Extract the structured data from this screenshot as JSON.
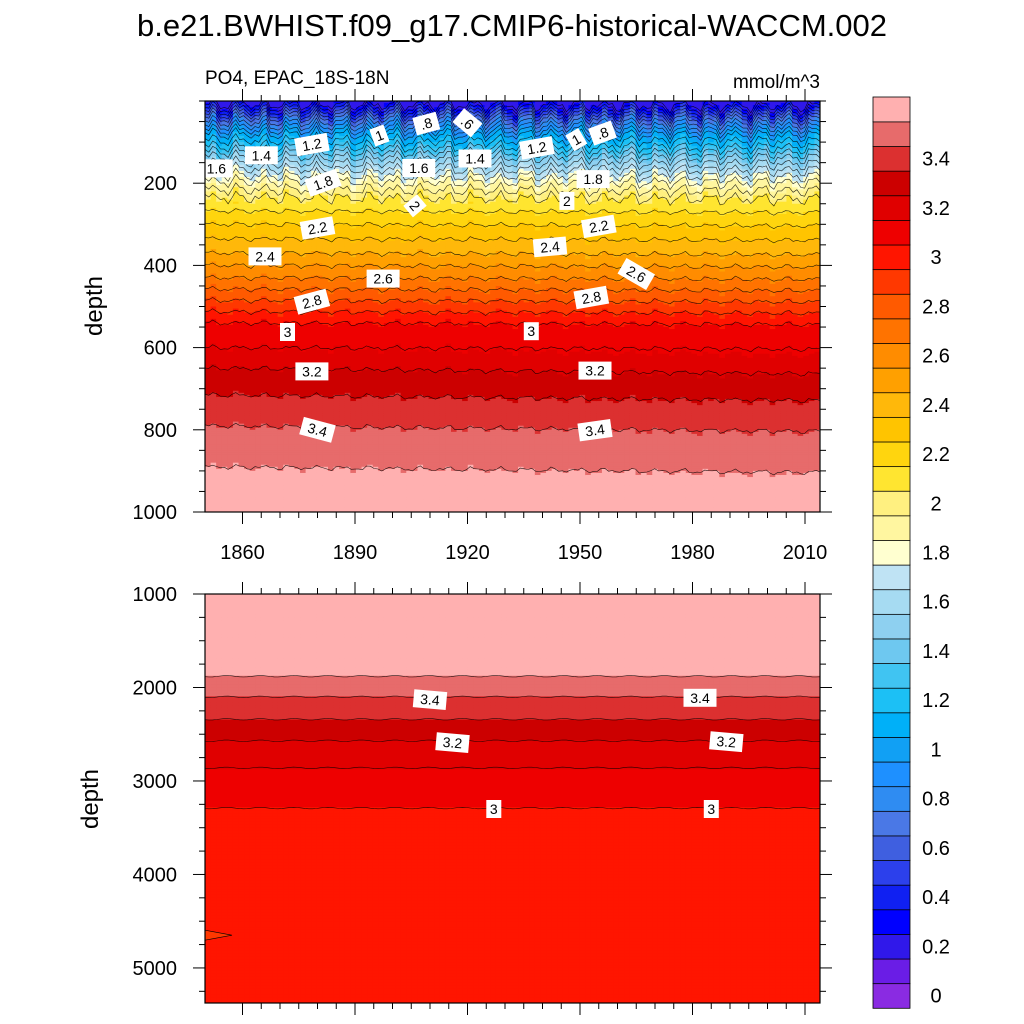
{
  "chart_data": {
    "type": "heatmap",
    "title": "b.e21.BWHIST.f09_g17.CMIP6-historical-WACCM.002",
    "left_string": "PO4, EPAC_18S-18N",
    "right_string": "mmol/m^3",
    "ylabel": "depth",
    "panels": [
      {
        "name": "upper",
        "ylim": [
          1000,
          0
        ],
        "xlim": [
          1850,
          2014
        ],
        "yticks": [
          "200",
          "400",
          "600",
          "800",
          "1000"
        ],
        "xticks": [
          "1860",
          "1890",
          "1920",
          "1950",
          "1980",
          "2010"
        ],
        "contour_labels": [
          {
            "text": "1",
            "x": 1896.5,
            "y": 84
          },
          {
            "text": ".8",
            "x": 1909,
            "y": 55
          },
          {
            "text": ".6",
            "x": 1920,
            "y": 53
          },
          {
            "text": "1.2",
            "x": 1878.5,
            "y": 106
          },
          {
            "text": "1.4",
            "x": 1865,
            "y": 132
          },
          {
            "text": "1.6",
            "x": 1853,
            "y": 164
          },
          {
            "text": "1.8",
            "x": 1881.5,
            "y": 199
          },
          {
            "text": "1.6",
            "x": 1907,
            "y": 163
          },
          {
            "text": "1.4",
            "x": 1922,
            "y": 140
          },
          {
            "text": "2",
            "x": 1906,
            "y": 255
          },
          {
            "text": "2.2",
            "x": 1880,
            "y": 309
          },
          {
            "text": "2.4",
            "x": 1866,
            "y": 378
          },
          {
            "text": "2.6",
            "x": 1897.5,
            "y": 432
          },
          {
            "text": "2.8",
            "x": 1878.5,
            "y": 488
          },
          {
            "text": "3",
            "x": 1872,
            "y": 562
          },
          {
            "text": "3.2",
            "x": 1878.5,
            "y": 658
          },
          {
            "text": "3.4",
            "x": 1880,
            "y": 800
          },
          {
            "text": "1.2",
            "x": 1938.5,
            "y": 114
          },
          {
            "text": "1",
            "x": 1949,
            "y": 94
          },
          {
            "text": ".8",
            "x": 1956,
            "y": 78
          },
          {
            "text": "1.8",
            "x": 1953.5,
            "y": 190
          },
          {
            "text": "2",
            "x": 1946.5,
            "y": 243
          },
          {
            "text": "2.2",
            "x": 1955,
            "y": 305
          },
          {
            "text": "2.4",
            "x": 1942,
            "y": 355
          },
          {
            "text": "2.6",
            "x": 1965,
            "y": 421
          },
          {
            "text": "2.8",
            "x": 1953,
            "y": 478
          },
          {
            "text": "3",
            "x": 1937,
            "y": 560
          },
          {
            "text": "3.2",
            "x": 1954,
            "y": 656
          },
          {
            "text": "3.4",
            "x": 1954,
            "y": 801
          }
        ]
      },
      {
        "name": "lower",
        "ylim": [
          1000,
          5375
        ],
        "xlim": [
          1850,
          2014
        ],
        "yticks": [
          "1000",
          "2000",
          "3000",
          "4000",
          "5000"
        ],
        "xticks": [],
        "contour_labels": [
          {
            "text": "3.4",
            "x": 1910,
            "y": 2130
          },
          {
            "text": "3.4",
            "x": 1982,
            "y": 2110
          },
          {
            "text": "3.2",
            "x": 1916,
            "y": 2590
          },
          {
            "text": "3.2",
            "x": 1989,
            "y": 2580
          },
          {
            "text": "3",
            "x": 1927,
            "y": 3300
          },
          {
            "text": "3",
            "x": 1985,
            "y": 3300
          }
        ]
      }
    ],
    "colorbar": {
      "labels": [
        "0",
        "0.2",
        "0.4",
        "0.6",
        "0.8",
        "1",
        "1.2",
        "1.4",
        "1.6",
        "1.8",
        "2",
        "2.2",
        "2.4",
        "2.6",
        "2.8",
        "3",
        "3.2",
        "3.4"
      ],
      "levels": [
        0,
        0.1,
        0.2,
        0.3,
        0.4,
        0.5,
        0.6,
        0.7,
        0.8,
        0.9,
        1.0,
        1.1,
        1.2,
        1.3,
        1.4,
        1.5,
        1.6,
        1.7,
        1.8,
        1.9,
        2.0,
        2.1,
        2.2,
        2.3,
        2.4,
        2.5,
        2.6,
        2.7,
        2.8,
        2.9,
        3.0,
        3.1,
        3.2,
        3.3,
        3.4,
        3.5
      ],
      "colors": [
        "#8a2be2",
        "#6a1de6",
        "#3018ea",
        "#0000ff",
        "#1020f2",
        "#2c40ec",
        "#3f5fe0",
        "#4a78e6",
        "#2f8cf2",
        "#1e90ff",
        "#11a0f4",
        "#00b0f8",
        "#1cc0f5",
        "#40c4f2",
        "#6ec8f0",
        "#8ed0f0",
        "#a6dbf2",
        "#bfe3f4",
        "#ffffd0",
        "#fff6a0",
        "#fff080",
        "#ffe530",
        "#ffd50e",
        "#ffc400",
        "#ffb80a",
        "#ffa000",
        "#ff8c00",
        "#ff7300",
        "#ff5a00",
        "#ff3800",
        "#ff1500",
        "#ee0000",
        "#e00000",
        "#cc0000",
        "#dc3030",
        "#e76b6b",
        "#ffb0b0"
      ]
    }
  }
}
